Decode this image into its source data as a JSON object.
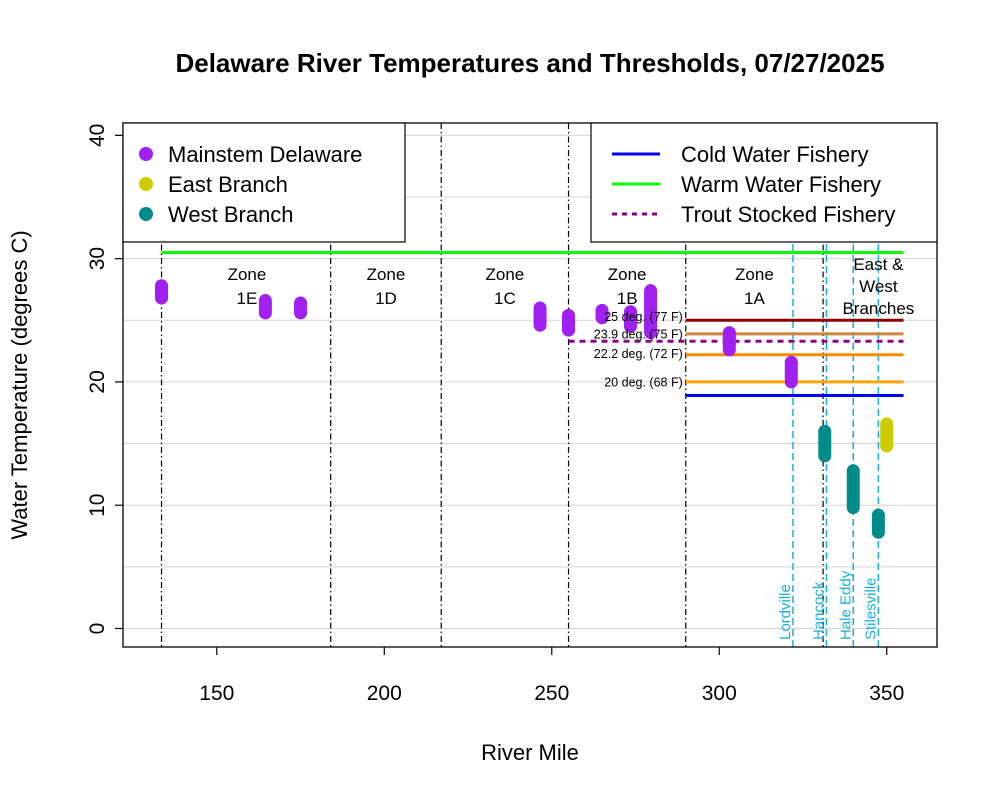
{
  "chart_data": {
    "type": "scatter",
    "title": "Delaware River Temperatures and Thresholds, 07/27/2025",
    "xlabel": "River Mile",
    "ylabel": "Water Temperature (degrees C)",
    "xlim": [
      122,
      365
    ],
    "ylim": [
      -1.5,
      41
    ],
    "x_ticks": [
      "150",
      "200",
      "250",
      "300",
      "350"
    ],
    "y_ticks": [
      "0",
      "10",
      "20",
      "30",
      "40"
    ],
    "grid": "horizontal",
    "series": [
      {
        "name": "Mainstem Delaware",
        "color": "#a020f0",
        "ranges": [
          {
            "x": 133.5,
            "ymin": 26.8,
            "ymax": 27.8
          },
          {
            "x": 164.5,
            "ymin": 25.6,
            "ymax": 26.6
          },
          {
            "x": 175,
            "ymin": 25.6,
            "ymax": 26.4
          },
          {
            "x": 246.5,
            "ymin": 24.6,
            "ymax": 26.0
          },
          {
            "x": 255,
            "ymin": 24.2,
            "ymax": 25.4
          },
          {
            "x": 265,
            "ymin": 25.2,
            "ymax": 25.8
          },
          {
            "x": 273.5,
            "ymin": 24.5,
            "ymax": 25.7
          },
          {
            "x": 279.5,
            "ymin": 24.0,
            "ymax": 27.4
          },
          {
            "x": 303,
            "ymin": 22.6,
            "ymax": 24.0
          },
          {
            "x": 321.5,
            "ymin": 20.0,
            "ymax": 21.6
          }
        ]
      },
      {
        "name": "East Branch",
        "color": "#cccc00",
        "ranges": [
          {
            "x": 350,
            "ymin": 14.8,
            "ymax": 16.6
          }
        ]
      },
      {
        "name": "West Branch",
        "color": "#008b8b",
        "ranges": [
          {
            "x": 331.5,
            "ymin": 14.0,
            "ymax": 16.0
          },
          {
            "x": 340,
            "ymin": 9.8,
            "ymax": 12.8
          },
          {
            "x": 347.5,
            "ymin": 7.8,
            "ymax": 9.2
          }
        ]
      }
    ],
    "threshold_lines": [
      {
        "name": "Cold Water Fishery",
        "y": 18.9,
        "x0": 290,
        "x1": 355,
        "color": "#0000ff",
        "style": "solid",
        "legend": true
      },
      {
        "name": "Warm Water Fishery",
        "y": 30.5,
        "x0": 133.5,
        "x1": 355,
        "color": "#00ff00",
        "style": "solid",
        "legend": true
      },
      {
        "name": "Trout Stocked Fishery",
        "y": 23.3,
        "x0": 255,
        "x1": 355,
        "color": "#8b008b",
        "style": "dashed",
        "legend": true
      },
      {
        "name": "25 deg. (77 F)",
        "y": 25.0,
        "x0": 290,
        "x1": 355,
        "color": "#8b0000",
        "style": "solid",
        "legend": false
      },
      {
        "name": "23.9 deg. (75 F)",
        "y": 23.9,
        "x0": 290,
        "x1": 355,
        "color": "#cd853f",
        "style": "solid",
        "legend": false
      },
      {
        "name": "22.2 deg. (72 F)",
        "y": 22.2,
        "x0": 290,
        "x1": 355,
        "color": "#ff8c00",
        "style": "solid",
        "legend": false
      },
      {
        "name": "20 deg. (68 F)",
        "y": 20.0,
        "x0": 290,
        "x1": 355,
        "color": "#ffa500",
        "style": "solid",
        "legend": false
      }
    ],
    "threshold_labels": [
      {
        "text": "25 deg. (77 F)",
        "y": 25.3
      },
      {
        "text": "23.9 deg. (75 F)",
        "y": 23.9
      },
      {
        "text": "22.2 deg. (72 F)",
        "y": 22.3
      },
      {
        "text": "20 deg. (68 F)",
        "y": 20.0
      }
    ],
    "zone_boundaries": [
      133.5,
      184,
      217,
      255,
      290,
      331
    ],
    "zones": [
      {
        "line1": "Zone",
        "line2": "1E",
        "x": 159
      },
      {
        "line1": "Zone",
        "line2": "1D",
        "x": 200.5
      },
      {
        "line1": "Zone",
        "line2": "1C",
        "x": 236
      },
      {
        "line1": "Zone",
        "line2": "1B",
        "x": 272.5
      },
      {
        "line1": "Zone",
        "line2": "1A",
        "x": 310.5
      }
    ],
    "branch_zone": {
      "line1": "East &",
      "line2": "West",
      "line3": "Branches",
      "x": 347.5
    },
    "town_lines": [
      {
        "name": "Lordville",
        "x": 322
      },
      {
        "name": "Hancock",
        "x": 332
      },
      {
        "name": "Hale Eddy",
        "x": 340
      },
      {
        "name": "Stilesville",
        "x": 347.5
      }
    ],
    "legends": [
      {
        "position": "top-left",
        "entries": [
          "Mainstem Delaware",
          "East Branch",
          "West Branch"
        ]
      },
      {
        "position": "top-right",
        "entries": [
          "Cold Water Fishery",
          "Warm Water Fishery",
          "Trout Stocked Fishery"
        ]
      }
    ]
  }
}
